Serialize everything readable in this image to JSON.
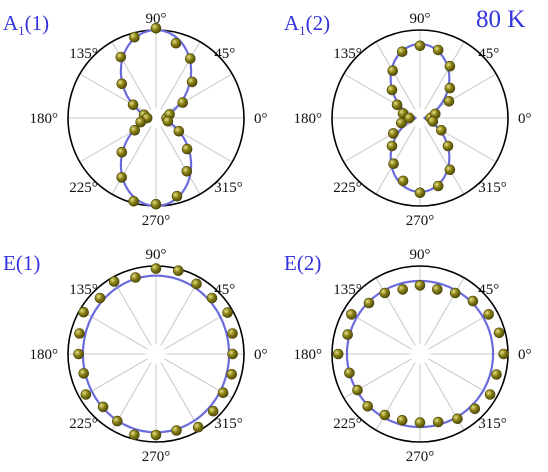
{
  "temperature_label": "80 K",
  "colors": {
    "fit": "#6b6bdc",
    "point_fill": "#8c8416",
    "point_edge": "#4b4508",
    "outer_circle": "#000000",
    "grid": "#c8c8c8",
    "label": "#3333dd"
  },
  "chart_data": [
    {
      "type": "scatter",
      "coordinate_system": "polar",
      "title_main": "A",
      "title_sub": "1",
      "title_suffix": "(1)",
      "angle_tick_labels": [
        "0°",
        "45°",
        "90°",
        "135°",
        "180°",
        "225°",
        "270°",
        "315°"
      ],
      "grid": true,
      "fit_model": "a*sin^2(theta)+b*cos^2(theta)",
      "fit_params": {
        "a": 1.0,
        "b": 0.07
      },
      "series": [
        {
          "theta_deg": [
            0,
            15,
            30,
            45,
            60,
            75,
            90,
            105,
            120,
            135,
            150,
            165,
            180,
            195,
            210,
            225,
            240,
            255,
            270,
            285,
            300,
            315,
            330,
            345
          ],
          "r": [
            0.12,
            0.16,
            0.35,
            0.58,
            0.78,
            0.88,
            1.02,
            0.95,
            0.8,
            0.55,
            0.3,
            0.14,
            0.1,
            0.18,
            0.28,
            0.55,
            0.78,
            0.98,
            0.98,
            0.92,
            0.7,
            0.5,
            0.3,
            0.14
          ]
        }
      ]
    },
    {
      "type": "scatter",
      "coordinate_system": "polar",
      "title_main": "A",
      "title_sub": "1",
      "title_suffix": "(2)",
      "angle_tick_labels": [
        "0°",
        "45°",
        "90°",
        "135°",
        "180°",
        "225°",
        "270°",
        "315°"
      ],
      "grid": true,
      "fit_model": "a*sin^2(theta)+b*cos^2(theta)",
      "fit_params": {
        "a": 0.84,
        "b": 0.05
      },
      "series": [
        {
          "theta_deg": [
            0,
            15,
            30,
            45,
            60,
            75,
            90,
            105,
            120,
            135,
            150,
            165,
            180,
            195,
            210,
            225,
            240,
            255,
            270,
            285,
            300,
            315,
            330,
            345
          ],
          "r": [
            0.12,
            0.18,
            0.38,
            0.48,
            0.68,
            0.8,
            0.82,
            0.78,
            0.62,
            0.45,
            0.3,
            0.2,
            0.12,
            0.22,
            0.35,
            0.45,
            0.6,
            0.74,
            0.85,
            0.8,
            0.68,
            0.45,
            0.28,
            0.15
          ]
        }
      ]
    },
    {
      "type": "scatter",
      "coordinate_system": "polar",
      "title_main": "E(1)",
      "angle_tick_labels": [
        "0°",
        "45°",
        "90°",
        "135°",
        "180°",
        "225°",
        "270°",
        "315°"
      ],
      "grid": true,
      "fit_model": "ellipse",
      "fit_params": {
        "a": 0.83,
        "b": 0.89
      },
      "series": [
        {
          "theta_deg": [
            0,
            15,
            30,
            45,
            60,
            75,
            90,
            105,
            120,
            135,
            150,
            165,
            180,
            195,
            210,
            225,
            240,
            255,
            270,
            285,
            300,
            315,
            330,
            345
          ],
          "r": [
            0.87,
            0.9,
            0.94,
            0.9,
            0.92,
            0.98,
            0.97,
            0.9,
            0.95,
            0.9,
            0.95,
            0.9,
            0.88,
            0.85,
            0.92,
            0.85,
            0.88,
            0.95,
            0.92,
            0.9,
            0.96,
            0.92,
            0.88,
            0.89
          ]
        }
      ]
    },
    {
      "type": "scatter",
      "coordinate_system": "polar",
      "title_main": "E(2)",
      "angle_tick_labels": [
        "0°",
        "45°",
        "90°",
        "135°",
        "180°",
        "225°",
        "270°",
        "315°"
      ],
      "grid": true,
      "fit_model": "ellipse",
      "fit_params": {
        "a": 0.83,
        "b": 0.83
      },
      "series": [
        {
          "theta_deg": [
            0,
            15,
            30,
            45,
            60,
            75,
            90,
            105,
            120,
            135,
            150,
            165,
            180,
            195,
            210,
            225,
            240,
            255,
            270,
            285,
            300,
            315,
            330,
            345
          ],
          "r": [
            0.95,
            0.93,
            0.9,
            0.85,
            0.8,
            0.76,
            0.78,
            0.76,
            0.8,
            0.82,
            0.9,
            0.85,
            0.93,
            0.83,
            0.82,
            0.84,
            0.8,
            0.78,
            0.78,
            0.8,
            0.85,
            0.88,
            0.92,
            0.9
          ]
        }
      ]
    }
  ]
}
